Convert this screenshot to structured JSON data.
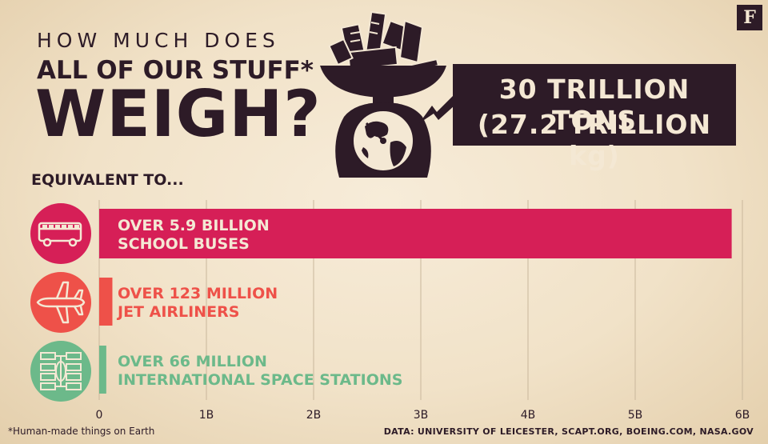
{
  "brand": {
    "logo": "F"
  },
  "title": {
    "line1": "HOW MUCH DOES",
    "line2": "ALL OF OUR STUFF*",
    "line3": "WEIGH?"
  },
  "total": {
    "line1": "30 TRILLION TONS",
    "line2": "(27.2 TRILLION kg)"
  },
  "section_label": "EQUIVALENT TO...",
  "footnote": "*Human-made things on Earth",
  "source": "DATA: UNIVERSITY OF LEICESTER, SCAPT.ORG, BOEING.COM, NASA.GOV",
  "icons": [
    "scale-icon",
    "globe-icon",
    "school-bus-icon",
    "jet-airliner-icon",
    "space-station-icon"
  ],
  "chart_data": {
    "type": "bar",
    "orientation": "horizontal",
    "categories": [
      "SCHOOL BUSES",
      "JET AIRLINERS",
      "INTERNATIONAL SPACE STATIONS"
    ],
    "values": [
      5900000000,
      123000000,
      66000000
    ],
    "labels": [
      [
        "OVER 5.9 BILLION",
        "SCHOOL BUSES"
      ],
      [
        "OVER 123 MILLION",
        "JET AIRLINERS"
      ],
      [
        "OVER 66 MILLION",
        "INTERNATIONAL SPACE STATIONS"
      ]
    ],
    "colors": [
      "#d61f57",
      "#ee5149",
      "#6cb98a"
    ],
    "label_colors": [
      "#f4e8d4",
      "#ee5149",
      "#6cb98a"
    ],
    "xlim": [
      0,
      6000000000
    ],
    "xticks": [
      0,
      1000000000,
      2000000000,
      3000000000,
      4000000000,
      5000000000,
      6000000000
    ],
    "xtick_labels": [
      "0",
      "1B",
      "2B",
      "3B",
      "4B",
      "5B",
      "6B"
    ],
    "grid": true
  }
}
